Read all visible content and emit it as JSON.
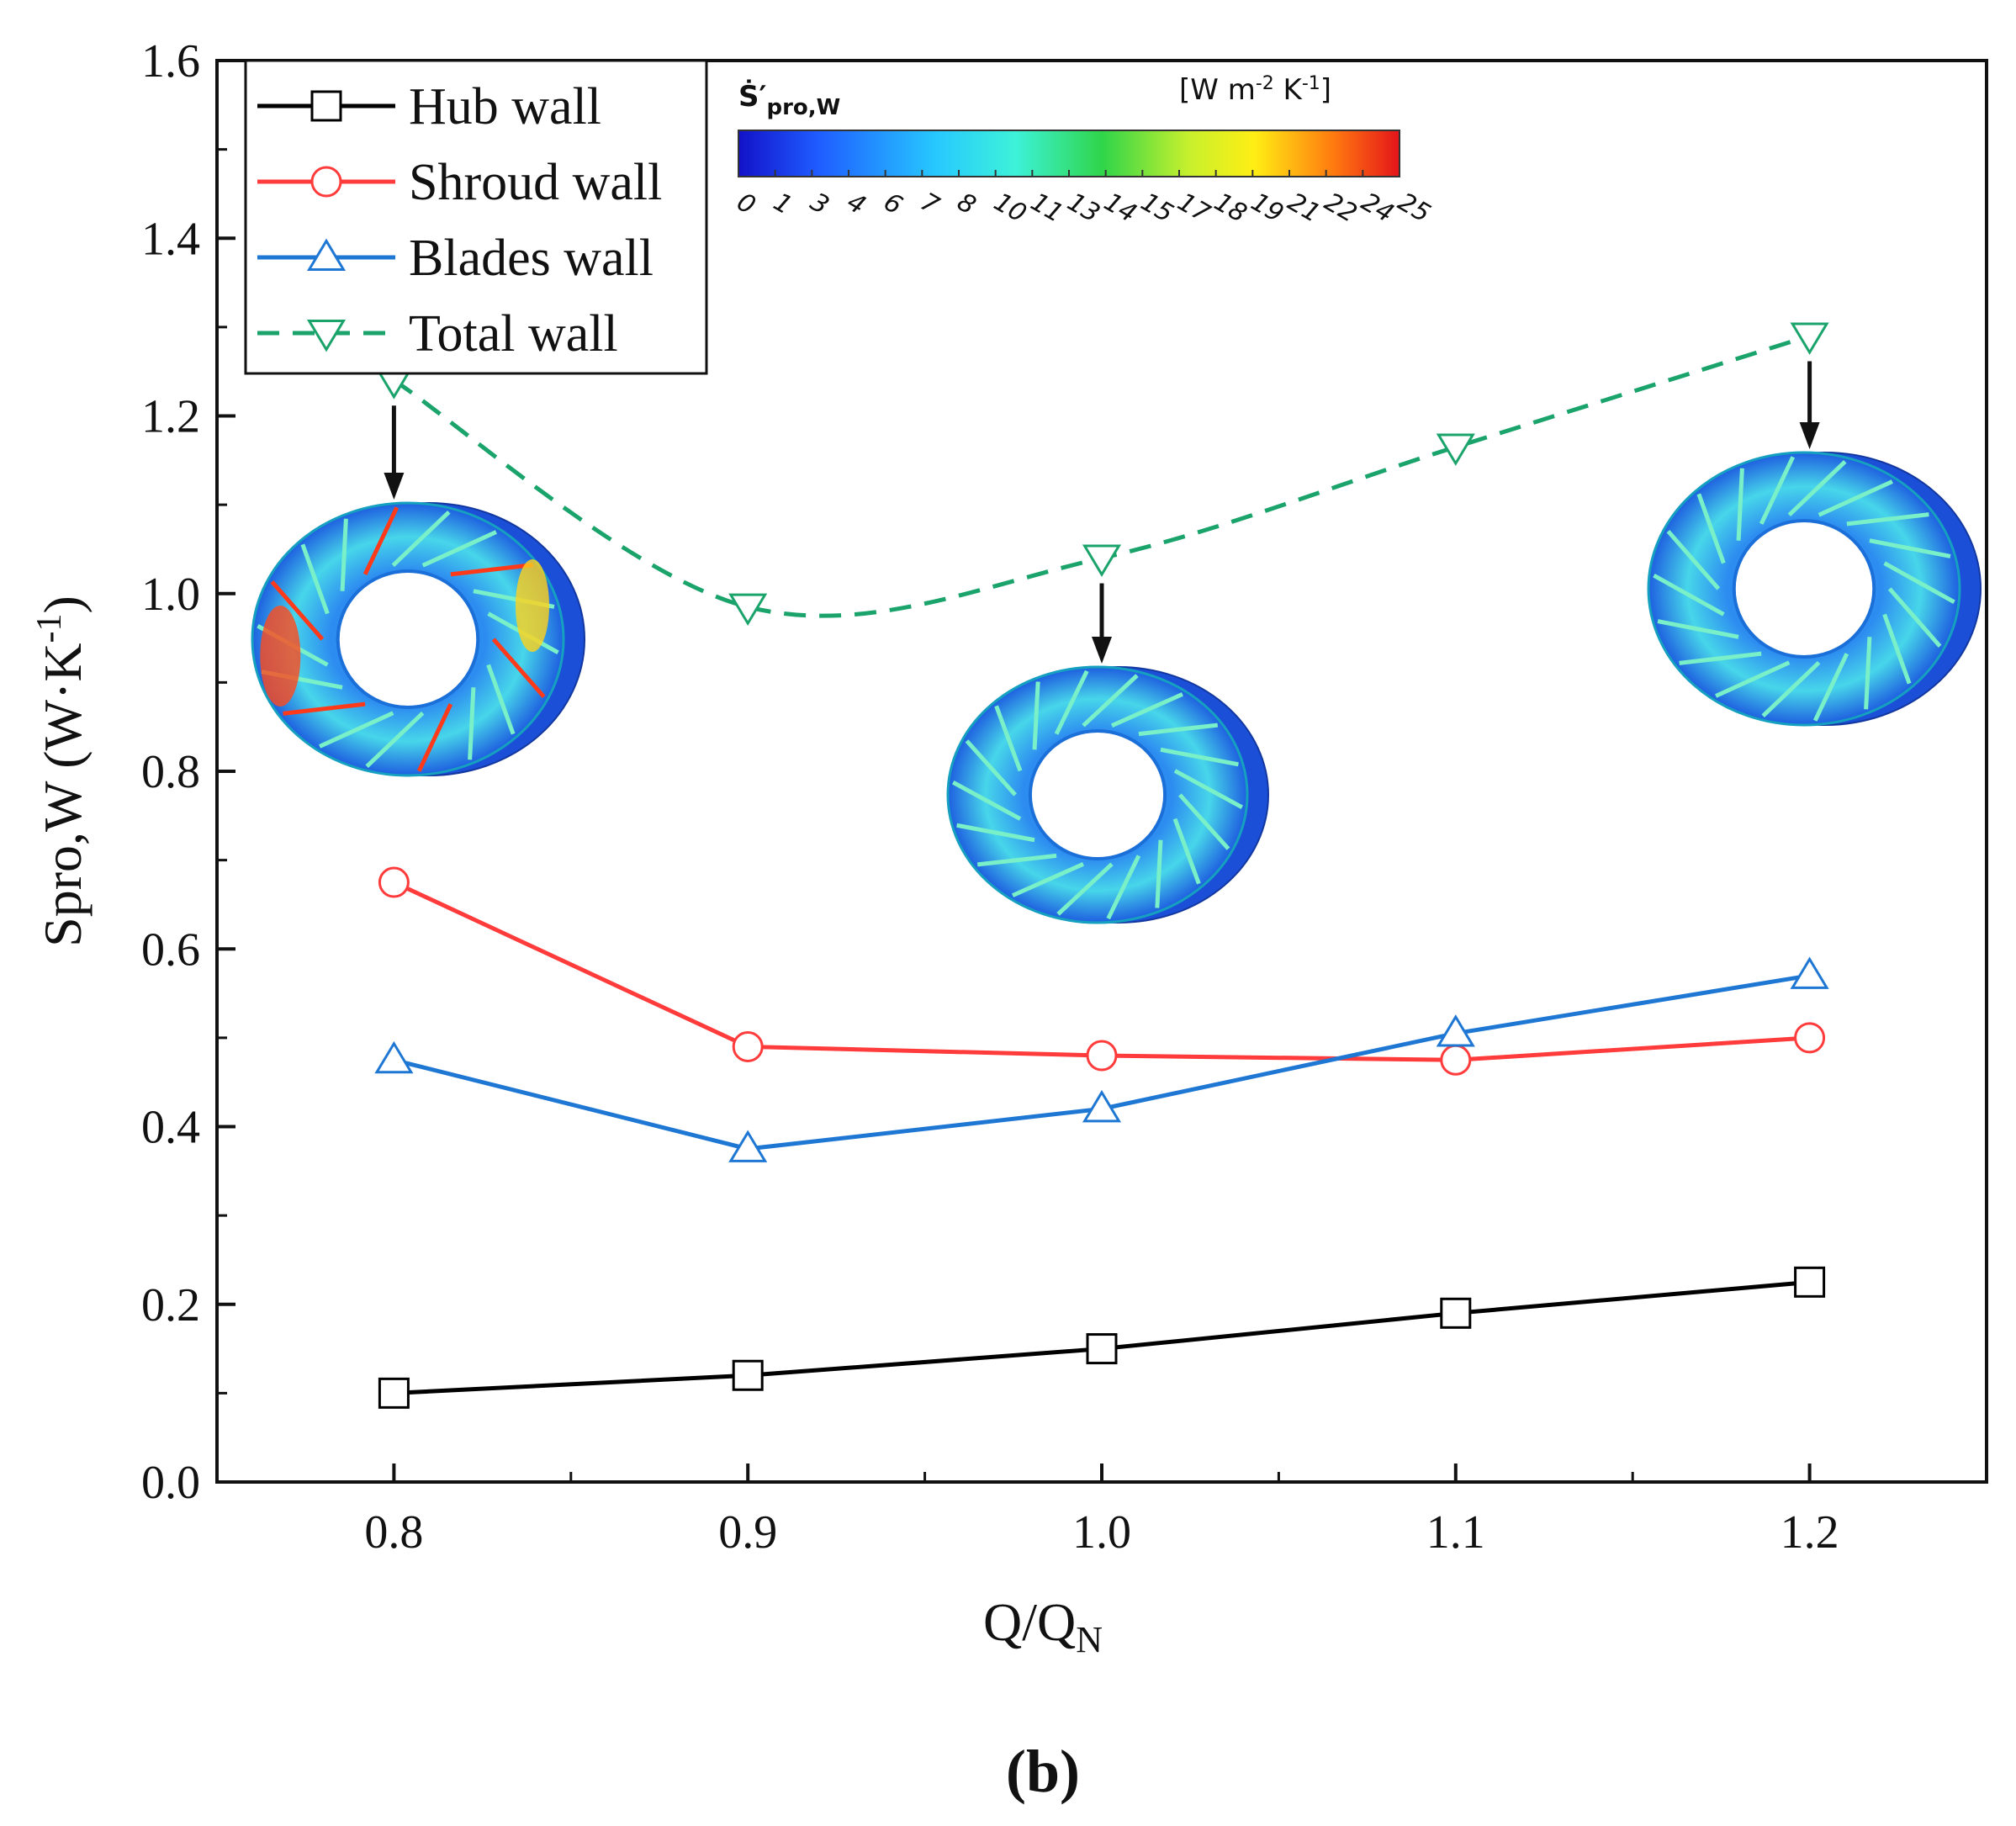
{
  "chart_data": {
    "type": "line",
    "xlabel": "Q/Q",
    "xlabel_sub": "N",
    "ylabel": "Spro,W (W·K",
    "ylabel_sup": "-1",
    "ylabel_close": ")",
    "xlim": [
      0.75,
      1.25
    ],
    "ylim": [
      0.0,
      1.6
    ],
    "x": [
      0.8,
      0.9,
      1.0,
      1.1,
      1.2
    ],
    "x_tick_labels": [
      "0.8",
      "0.9",
      "1.0",
      "1.1",
      "1.2"
    ],
    "y_ticks": [
      0.0,
      0.2,
      0.4,
      0.6,
      0.8,
      1.0,
      1.2,
      1.4,
      1.6
    ],
    "y_tick_labels": [
      "0.0",
      "0.2",
      "0.4",
      "0.6",
      "0.8",
      "1.0",
      "1.2",
      "1.4",
      "1.6"
    ],
    "series": [
      {
        "name": "Hub wall",
        "color": "#000000",
        "marker": "square",
        "dashed": false,
        "values": [
          0.1,
          0.12,
          0.15,
          0.19,
          0.225
        ]
      },
      {
        "name": "Shroud wall",
        "color": "#ff3b3b",
        "marker": "circle",
        "dashed": false,
        "values": [
          0.675,
          0.49,
          0.48,
          0.475,
          0.5
        ]
      },
      {
        "name": "Blades wall",
        "color": "#1f77d4",
        "marker": "triangle-up",
        "dashed": false,
        "values": [
          0.475,
          0.375,
          0.42,
          0.505,
          0.57
        ]
      },
      {
        "name": "Total wall",
        "color": "#1aa36b",
        "marker": "triangle-down",
        "dashed": true,
        "values": [
          1.24,
          0.985,
          1.04,
          1.165,
          1.29
        ]
      }
    ],
    "legend_position": "top-left",
    "annotations": [
      {
        "type": "contour-inset",
        "x": 0.8,
        "y": 1.24
      },
      {
        "type": "contour-inset",
        "x": 1.0,
        "y": 1.04
      },
      {
        "type": "contour-inset",
        "x": 1.2,
        "y": 1.29
      }
    ],
    "colorbar": {
      "label": "Ṡ′",
      "label_sub": "pro,W",
      "unit": "[W m",
      "unit_sup1": "-2",
      "unit_mid": " K",
      "unit_sup2": "-1",
      "unit_end": "]",
      "ticks": [
        "0",
        "1",
        "3",
        "4",
        "6",
        "7",
        "8",
        "10",
        "11",
        "13",
        "14",
        "15",
        "17",
        "18",
        "19",
        "21",
        "22",
        "24",
        "25"
      ]
    },
    "panel_label": "(b)"
  }
}
